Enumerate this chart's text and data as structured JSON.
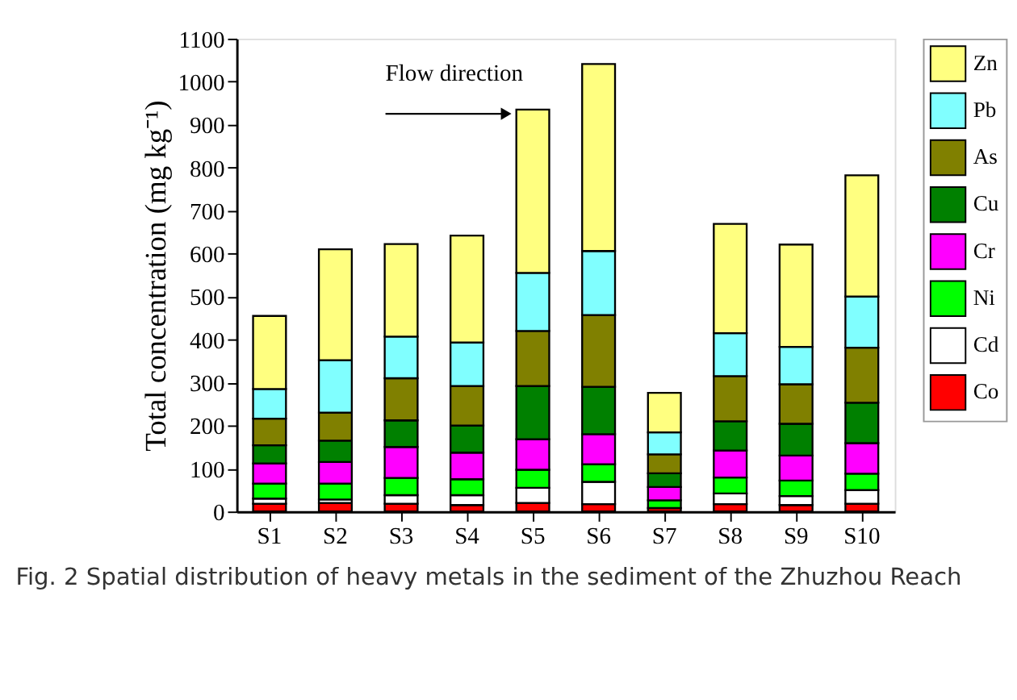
{
  "chart_data": {
    "type": "bar",
    "stacked": true,
    "ylabel": "Total concentration (mg kg⁻¹)",
    "categories": [
      "S1",
      "S2",
      "S3",
      "S4",
      "S5",
      "S6",
      "S7",
      "S8",
      "S9",
      "S10"
    ],
    "series": [
      {
        "name": "Co",
        "color": "#ff0000",
        "values": [
          18,
          20,
          18,
          15,
          20,
          17,
          8,
          17,
          15,
          18
        ]
      },
      {
        "name": "Cd",
        "color": "#ffffff",
        "values": [
          12,
          8,
          20,
          23,
          35,
          52,
          null,
          25,
          21,
          32
        ]
      },
      {
        "name": "Ni",
        "color": "#00ff00",
        "values": [
          35,
          37,
          40,
          37,
          42,
          41,
          18,
          37,
          36,
          38
        ]
      },
      {
        "name": "Cr",
        "color": "#ff00ff",
        "values": [
          47,
          50,
          72,
          62,
          71,
          70,
          31,
          63,
          58,
          71
        ]
      },
      {
        "name": "Cu",
        "color": "#008000",
        "values": [
          42,
          50,
          62,
          63,
          124,
          110,
          32,
          68,
          74,
          94
        ]
      },
      {
        "name": "As",
        "color": "#808000",
        "values": [
          62,
          65,
          98,
          92,
          128,
          167,
          44,
          105,
          92,
          128
        ]
      },
      {
        "name": "Pb",
        "color": "#80ffff",
        "values": [
          69,
          122,
          97,
          101,
          135,
          149,
          51,
          100,
          87,
          119
        ]
      },
      {
        "name": "Zn",
        "color": "#ffff80",
        "values": [
          170,
          258,
          215,
          249,
          380,
          435,
          92,
          254,
          238,
          282
        ]
      }
    ],
    "ylim": [
      0,
      1100
    ],
    "yticks": [
      0,
      100,
      200,
      300,
      400,
      500,
      600,
      700,
      800,
      900,
      1000,
      1100
    ],
    "grid": false,
    "legend": "right",
    "annotations": [
      "Flow direction",
      "Fig. 2  Spatial distribution of heavy metals in the sediment of the Zhuzhou Reach"
    ]
  }
}
